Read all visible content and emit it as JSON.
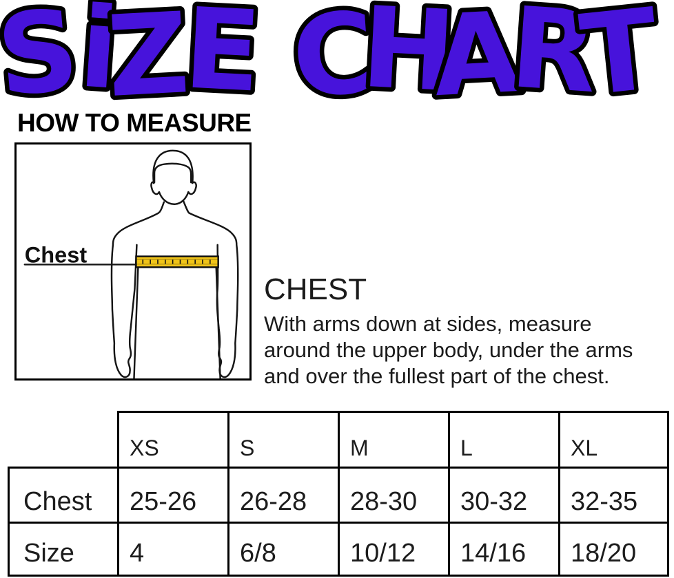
{
  "title": {
    "text": "SiZE CHART"
  },
  "colors": {
    "title_fill": "#4713DB",
    "title_outline": "#000000",
    "tape": "#F0C419"
  },
  "measure_section": {
    "heading": "HOW TO MEASURE",
    "figure_label": "Chest"
  },
  "chest_section": {
    "heading": "CHEST",
    "lines": [
      "With arms down at sides, measure",
      "around the upper body, under the arms",
      "and over the fullest part of the chest."
    ]
  },
  "size_table": {
    "columns": [
      "XS",
      "S",
      "M",
      "L",
      "XL"
    ],
    "rows": [
      {
        "label": "Chest",
        "values": [
          "25-26",
          "26-28",
          "28-30",
          "30-32",
          "32-35"
        ]
      },
      {
        "label": "Size",
        "values": [
          "4",
          "6/8",
          "10/12",
          "14/16",
          "18/20"
        ]
      }
    ]
  }
}
